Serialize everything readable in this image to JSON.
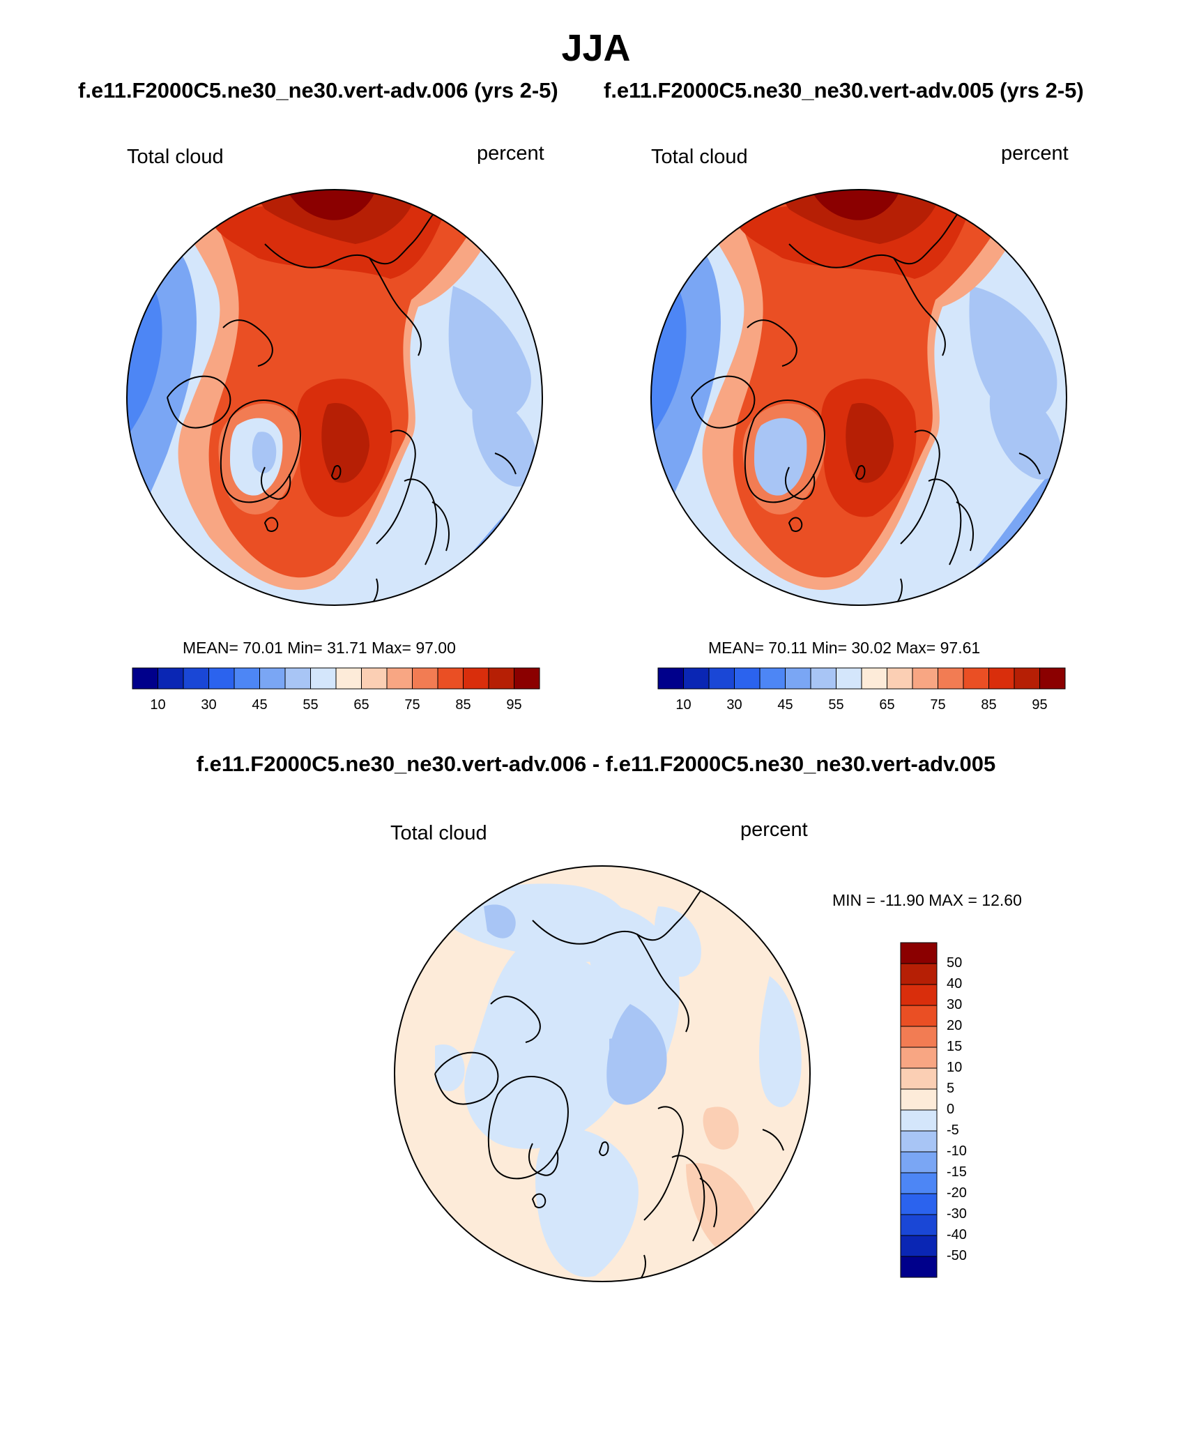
{
  "season": "JJA",
  "panels": [
    {
      "case_title": "f.e11.F2000C5.ne30_ne30.vert-adv.006 (yrs 2-5)",
      "variable": "Total cloud",
      "units": "percent",
      "stats": "MEAN=  70.01  Min=  31.71  Max=  97.00"
    },
    {
      "case_title": "f.e11.F2000C5.ne30_ne30.vert-adv.005 (yrs 2-5)",
      "variable": "Total cloud",
      "units": "percent",
      "stats": "MEAN=  70.11  Min=  30.02  Max=  97.61"
    }
  ],
  "difference": {
    "title": "f.e11.F2000C5.ne30_ne30.vert-adv.006 - f.e11.F2000C5.ne30_ne30.vert-adv.005",
    "variable": "Total cloud",
    "units": "percent",
    "stats": "MIN = -11.90 MAX =  12.60"
  },
  "colorbar_main": {
    "orientation": "horizontal",
    "tick_labels": [
      "10",
      "30",
      "45",
      "55",
      "65",
      "75",
      "85",
      "95"
    ],
    "colors": [
      "#00008b",
      "#0a26b4",
      "#1a47d6",
      "#2b63ee",
      "#4d86f5",
      "#7aa6f4",
      "#a8c5f5",
      "#d4e6fb",
      "#fdebd9",
      "#fbcfb4",
      "#f8a683",
      "#f27c53",
      "#ea4f24",
      "#d92e0c",
      "#b61f05",
      "#8b0000"
    ]
  },
  "colorbar_diff": {
    "orientation": "vertical",
    "tick_labels": [
      "50",
      "40",
      "30",
      "20",
      "15",
      "10",
      "5",
      "0",
      "-5",
      "-10",
      "-15",
      "-20",
      "-30",
      "-40",
      "-50"
    ],
    "colors": [
      "#8b0000",
      "#b61f05",
      "#d92e0c",
      "#ea4f24",
      "#f27c53",
      "#f8a683",
      "#fbcfb4",
      "#fdebd9",
      "#d4e6fb",
      "#a8c5f5",
      "#7aa6f4",
      "#4d86f5",
      "#2b63ee",
      "#1a47d6",
      "#0a26b4",
      "#00008b"
    ]
  }
}
